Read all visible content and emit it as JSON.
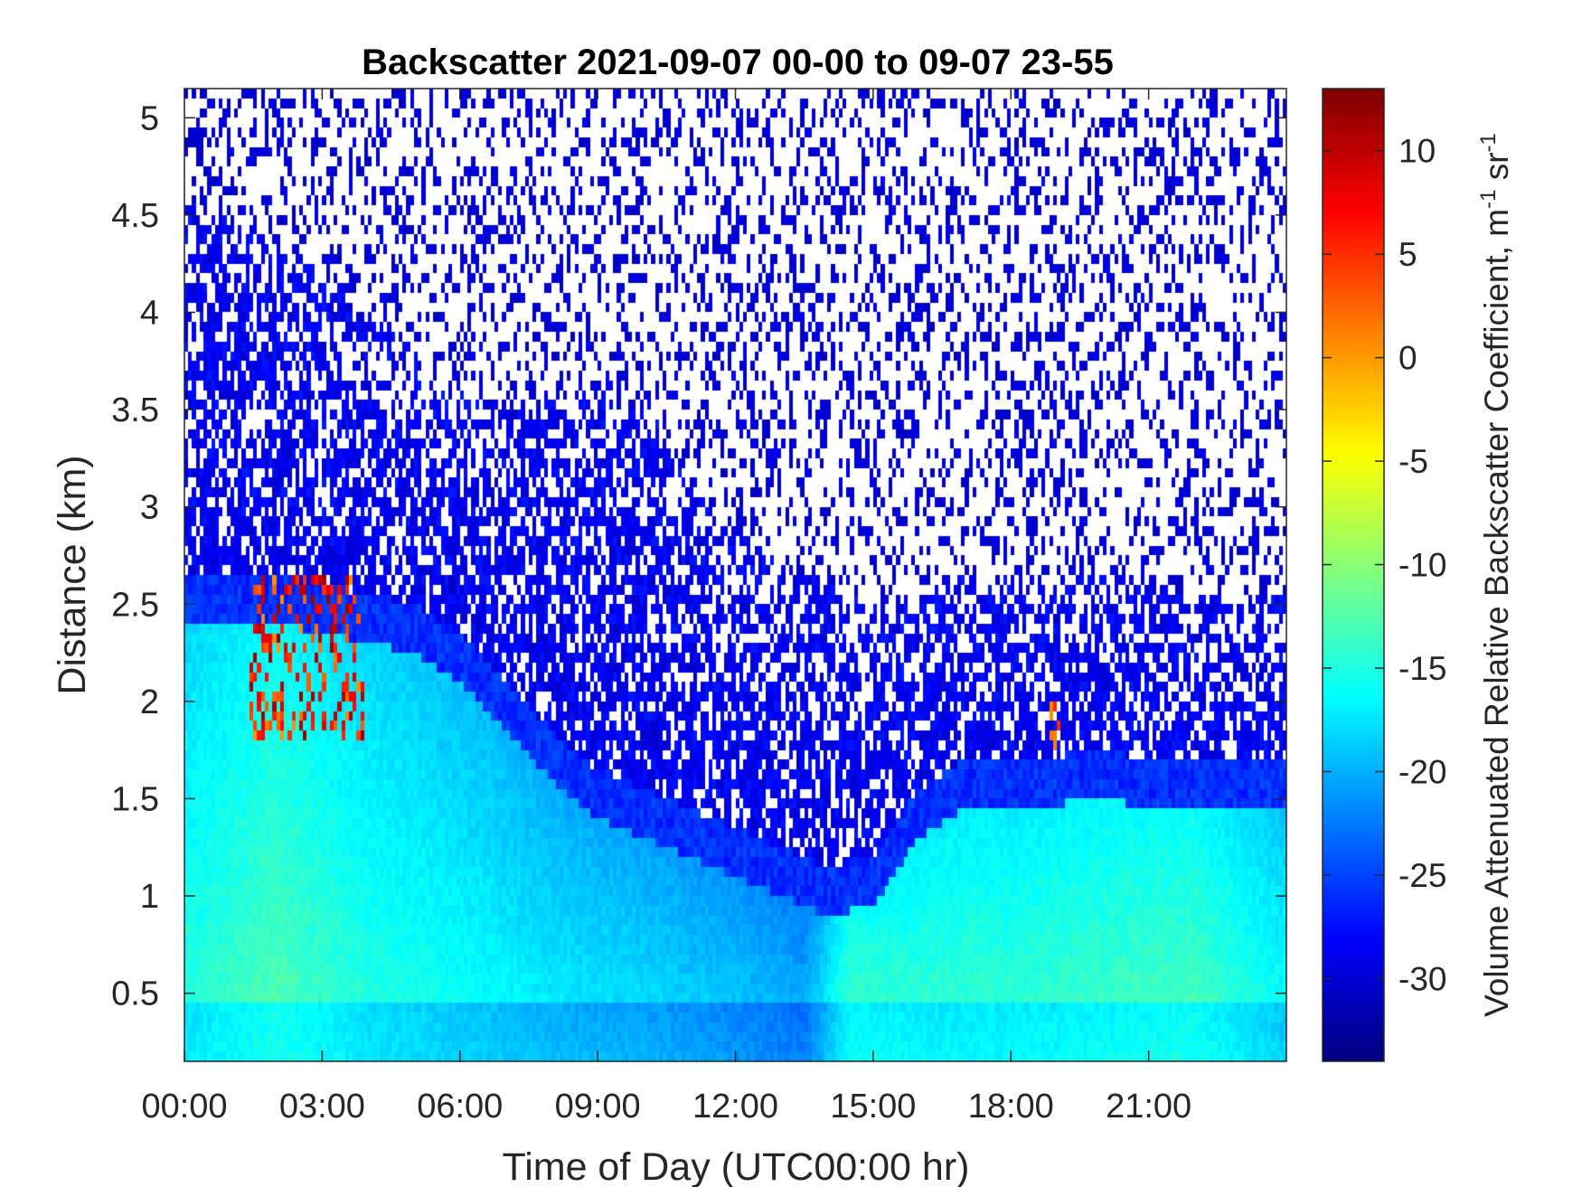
{
  "chart_data": {
    "type": "heatmap",
    "title": "Backscatter 2021-09-07 00-00 to 09-07 23-55",
    "xlabel": "Time of Day (UTC00:00 hr)",
    "ylabel": "Distance (km)",
    "colorbar_label": "Volume Attenuated Relative Backscatter Coefficient, m",
    "colorbar_label_sup1": "-1",
    "colorbar_label_mid": " sr",
    "colorbar_label_sup2": "-1",
    "colormap": "jet",
    "x_range_hours": [
      0,
      24
    ],
    "y_range_km": [
      0.15,
      5.15
    ],
    "color_range": [
      -34,
      13
    ],
    "x_ticks": [
      {
        "hour": 0,
        "label": "00:00"
      },
      {
        "hour": 3,
        "label": "03:00"
      },
      {
        "hour": 6,
        "label": "06:00"
      },
      {
        "hour": 9,
        "label": "09:00"
      },
      {
        "hour": 12,
        "label": "12:00"
      },
      {
        "hour": 15,
        "label": "15:00"
      },
      {
        "hour": 18,
        "label": "18:00"
      },
      {
        "hour": 21,
        "label": "21:00"
      }
    ],
    "y_ticks": [
      {
        "value": 0.5,
        "label": "0.5"
      },
      {
        "value": 1,
        "label": "1"
      },
      {
        "value": 1.5,
        "label": "1.5"
      },
      {
        "value": 2,
        "label": "2"
      },
      {
        "value": 2.5,
        "label": "2.5"
      },
      {
        "value": 3,
        "label": "3"
      },
      {
        "value": 3.5,
        "label": "3.5"
      },
      {
        "value": 4,
        "label": "4"
      },
      {
        "value": 4.5,
        "label": "4.5"
      },
      {
        "value": 5,
        "label": "5"
      }
    ],
    "colorbar_ticks": [
      {
        "value": 10,
        "label": "10"
      },
      {
        "value": 5,
        "label": "5"
      },
      {
        "value": 0,
        "label": "0"
      },
      {
        "value": -5,
        "label": "-5"
      },
      {
        "value": -10,
        "label": "-10"
      },
      {
        "value": -15,
        "label": "-15"
      },
      {
        "value": -20,
        "label": "-20"
      },
      {
        "value": -25,
        "label": "-25"
      },
      {
        "value": -30,
        "label": "-30"
      }
    ],
    "boundary_layer_top_km": [
      [
        0,
        2.65
      ],
      [
        1,
        2.65
      ],
      [
        2,
        2.65
      ],
      [
        3,
        2.6
      ],
      [
        4,
        2.55
      ],
      [
        5,
        2.5
      ],
      [
        6,
        2.35
      ],
      [
        7,
        2.1
      ],
      [
        8,
        1.85
      ],
      [
        9,
        1.65
      ],
      [
        10,
        1.55
      ],
      [
        11,
        1.45
      ],
      [
        12,
        1.35
      ],
      [
        13,
        1.25
      ],
      [
        14,
        1.15
      ],
      [
        15,
        1.2
      ],
      [
        16,
        1.55
      ],
      [
        17,
        1.7
      ],
      [
        18,
        1.7
      ],
      [
        19,
        1.72
      ],
      [
        20,
        1.75
      ],
      [
        21,
        1.7
      ],
      [
        22,
        1.7
      ],
      [
        23,
        1.7
      ],
      [
        24,
        1.7
      ]
    ],
    "aerosol_top_km": [
      [
        0,
        4.55
      ],
      [
        1,
        4.5
      ],
      [
        2,
        4.35
      ],
      [
        3,
        4.2
      ],
      [
        4,
        4.05
      ],
      [
        5,
        3.8
      ],
      [
        6,
        3.6
      ],
      [
        7,
        3.45
      ],
      [
        8,
        3.55
      ],
      [
        9,
        3.65
      ],
      [
        10,
        3.6
      ],
      [
        11,
        3.1
      ],
      [
        12,
        2.9
      ],
      [
        13,
        2.7
      ],
      [
        14,
        2.6
      ],
      [
        15,
        2.5
      ],
      [
        16,
        2.55
      ],
      [
        17,
        2.65
      ],
      [
        18,
        2.65
      ],
      [
        19,
        2.6
      ],
      [
        20,
        2.65
      ],
      [
        21,
        2.6
      ],
      [
        22,
        2.55
      ],
      [
        23,
        2.55
      ],
      [
        24,
        2.55
      ]
    ],
    "surface_layer_values": [
      [
        0,
        -14
      ],
      [
        2,
        -12
      ],
      [
        4,
        -14
      ],
      [
        6,
        -15
      ],
      [
        8,
        -16
      ],
      [
        10,
        -16.5
      ],
      [
        12,
        -17.5
      ],
      [
        13.5,
        -18.5
      ],
      [
        14.5,
        -12
      ],
      [
        16,
        -13
      ],
      [
        18,
        -13
      ],
      [
        20,
        -12.5
      ],
      [
        22,
        -12
      ],
      [
        24,
        -15
      ]
    ],
    "high_signal_events": [
      {
        "hour_start": 1.4,
        "hour_end": 3.9,
        "km_low": 1.8,
        "km_high": 2.65,
        "value_range": [
          0,
          12
        ]
      },
      {
        "hour_start": 18.85,
        "hour_end": 19.05,
        "km_low": 1.75,
        "km_high": 2.0,
        "value_range": [
          0,
          6
        ]
      }
    ]
  }
}
